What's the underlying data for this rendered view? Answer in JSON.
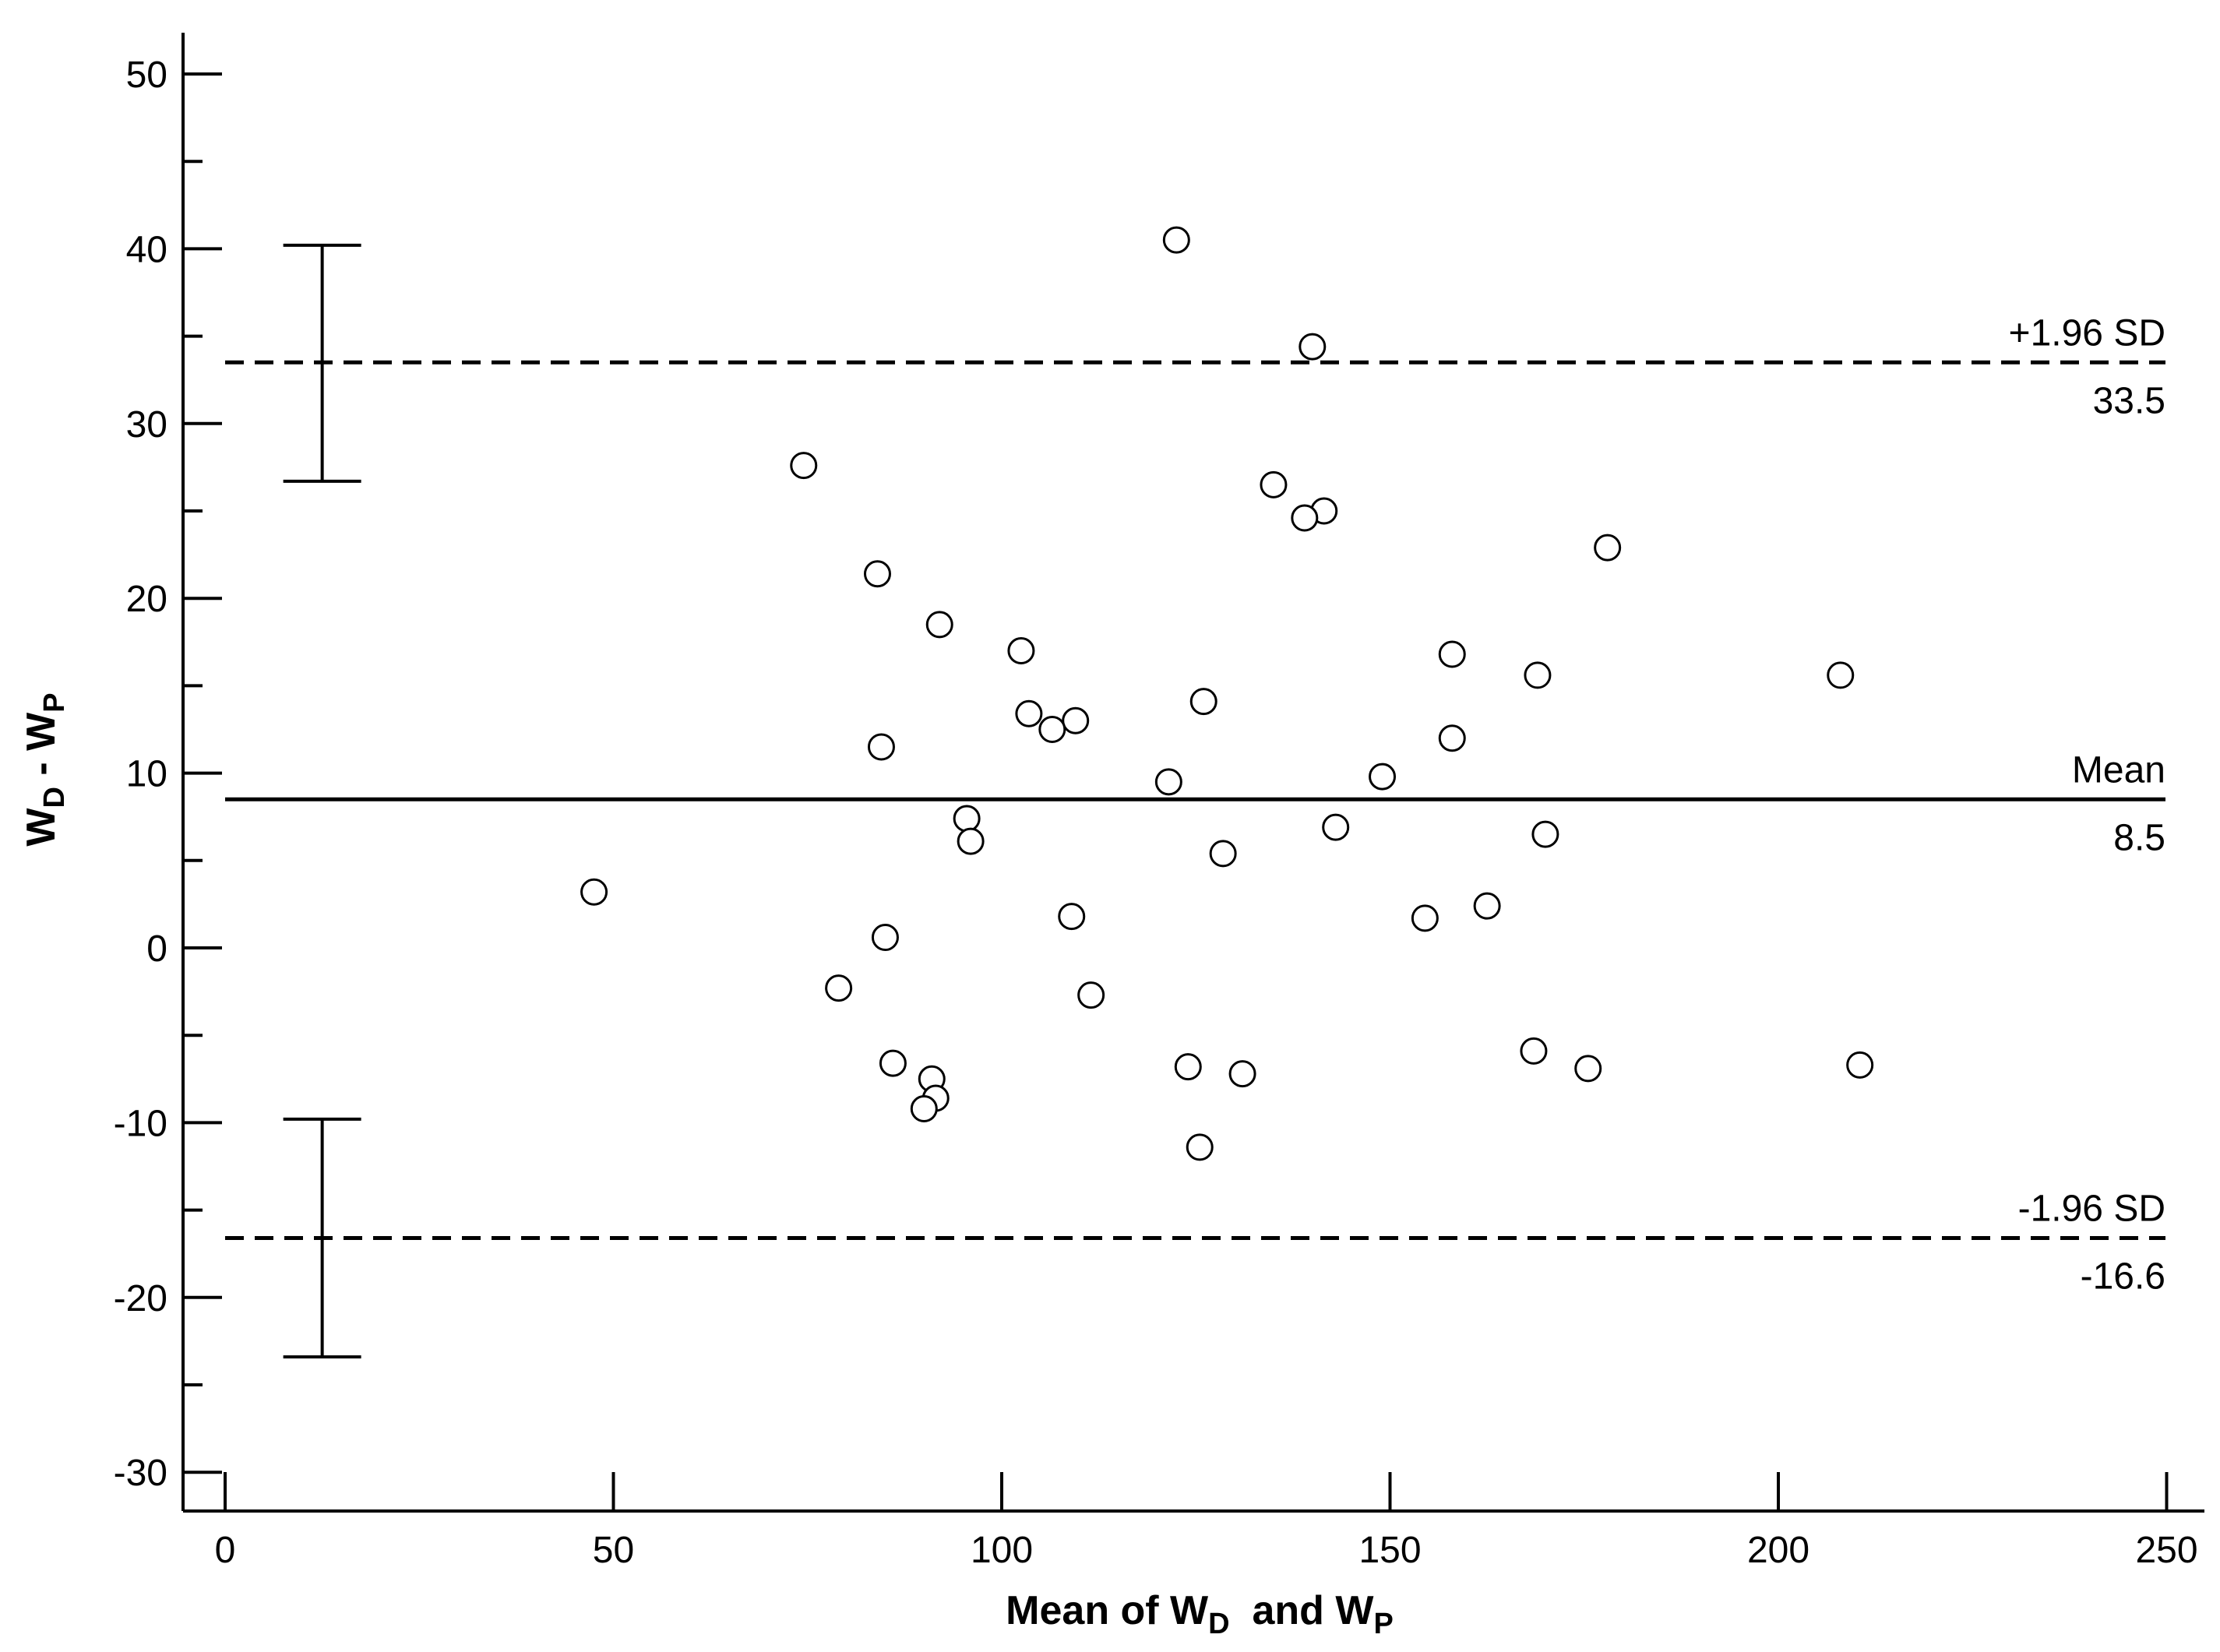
{
  "chart_data": {
    "type": "scatter",
    "xlabel": {
      "main1": "Mean of W",
      "sub1": "D",
      "main2": "  and W",
      "sub2": "P"
    },
    "ylabel": {
      "main1": "W",
      "sub1": "D",
      "main2": " - W",
      "sub2": "P"
    },
    "xlim": [
      -5,
      252
    ],
    "ylim": [
      -32,
      52.5
    ],
    "xticks": [
      0,
      50,
      100,
      150,
      200,
      250
    ],
    "yticks": [
      -30,
      -20,
      -10,
      0,
      10,
      20,
      30,
      40,
      50
    ],
    "yminor_ticks": [
      -25,
      -15,
      -5,
      5,
      15,
      25,
      35,
      45
    ],
    "grid": false,
    "reference_lines": [
      {
        "name": "+1.96 SD",
        "value_label": "33.5",
        "y": 33.5,
        "style": "dashed"
      },
      {
        "name": "Mean",
        "value_label": "8.5",
        "y": 8.5,
        "style": "solid"
      },
      {
        "name": "-1.96 SD",
        "value_label": "-16.6",
        "y": -16.6,
        "style": "dashed"
      }
    ],
    "ci_bars": [
      {
        "x": 12.5,
        "low": 26.7,
        "high": 40.2
      },
      {
        "x": 12.5,
        "low": -23.4,
        "high": -9.8
      }
    ],
    "points": [
      {
        "x": 122.5,
        "y": 40.5
      },
      {
        "x": 140,
        "y": 34.4
      },
      {
        "x": 74.5,
        "y": 27.6
      },
      {
        "x": 135,
        "y": 26.5
      },
      {
        "x": 141.5,
        "y": 25.0
      },
      {
        "x": 139,
        "y": 24.6
      },
      {
        "x": 178,
        "y": 22.9
      },
      {
        "x": 84,
        "y": 21.4
      },
      {
        "x": 92,
        "y": 18.5
      },
      {
        "x": 102.5,
        "y": 17.0
      },
      {
        "x": 158,
        "y": 16.8
      },
      {
        "x": 169,
        "y": 15.6
      },
      {
        "x": 208,
        "y": 15.6
      },
      {
        "x": 126,
        "y": 14.1
      },
      {
        "x": 103.5,
        "y": 13.4
      },
      {
        "x": 109.5,
        "y": 13.0
      },
      {
        "x": 106.5,
        "y": 12.5
      },
      {
        "x": 158,
        "y": 12.0
      },
      {
        "x": 84.5,
        "y": 11.5
      },
      {
        "x": 149,
        "y": 9.8
      },
      {
        "x": 121.5,
        "y": 9.5
      },
      {
        "x": 95.5,
        "y": 7.4
      },
      {
        "x": 143,
        "y": 6.9
      },
      {
        "x": 170,
        "y": 6.5
      },
      {
        "x": 96,
        "y": 6.1
      },
      {
        "x": 128.5,
        "y": 5.4
      },
      {
        "x": 47.5,
        "y": 3.2
      },
      {
        "x": 162.5,
        "y": 2.4
      },
      {
        "x": 109,
        "y": 1.8
      },
      {
        "x": 154.5,
        "y": 1.7
      },
      {
        "x": 85,
        "y": 0.6
      },
      {
        "x": 79,
        "y": -2.3
      },
      {
        "x": 111.5,
        "y": -2.7
      },
      {
        "x": 168.5,
        "y": -5.9
      },
      {
        "x": 86,
        "y": -6.6
      },
      {
        "x": 124,
        "y": -6.8
      },
      {
        "x": 210.5,
        "y": -6.7
      },
      {
        "x": 175.5,
        "y": -6.9
      },
      {
        "x": 131,
        "y": -7.2
      },
      {
        "x": 91,
        "y": -7.5
      },
      {
        "x": 91.5,
        "y": -8.6
      },
      {
        "x": 90,
        "y": -9.2
      },
      {
        "x": 125.5,
        "y": -11.4
      }
    ]
  }
}
